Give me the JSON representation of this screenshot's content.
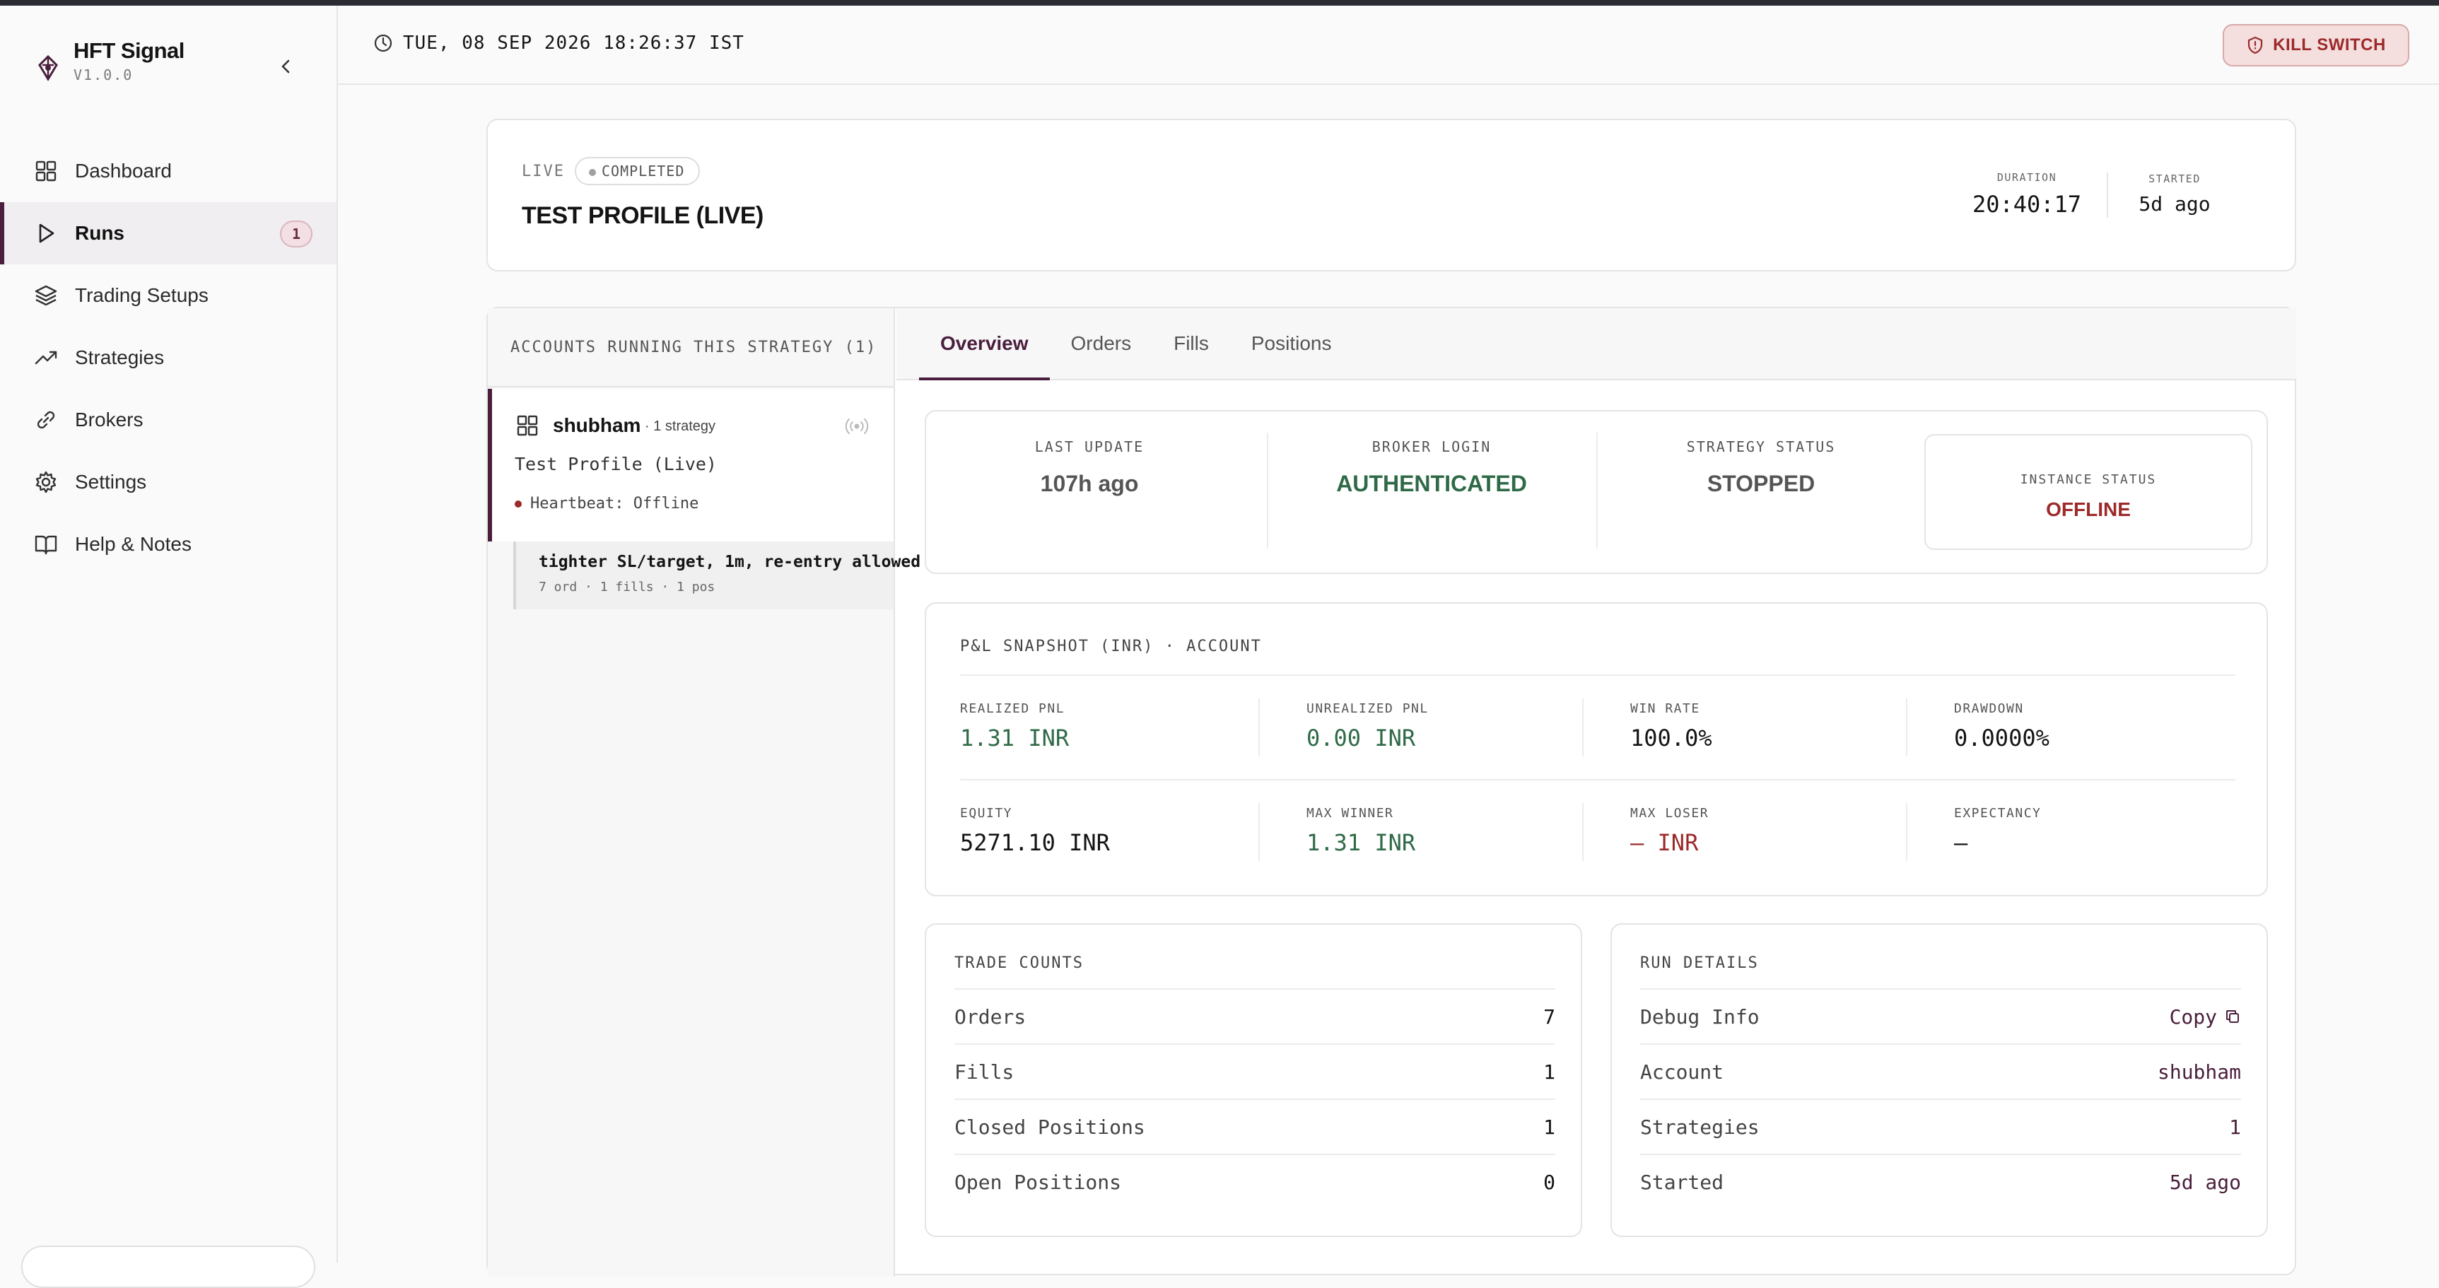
{
  "app": {
    "name": "HFT Signal",
    "version": "V1.0.0"
  },
  "nav": {
    "items": [
      {
        "label": "Dashboard",
        "icon": "grid-icon"
      },
      {
        "label": "Runs",
        "icon": "play-icon",
        "badge": "1",
        "active": true
      },
      {
        "label": "Trading Setups",
        "icon": "layers-icon"
      },
      {
        "label": "Strategies",
        "icon": "trending-up-icon"
      },
      {
        "label": "Brokers",
        "icon": "link-icon"
      },
      {
        "label": "Settings",
        "icon": "gear-icon"
      },
      {
        "label": "Help & Notes",
        "icon": "book-icon"
      }
    ]
  },
  "header": {
    "datetime": "TUE, 08 SEP 2026 18:26:37 IST",
    "kill_switch_label": "KILL SWITCH"
  },
  "run": {
    "mode": "LIVE",
    "status": "COMPLETED",
    "title": "TEST PROFILE (LIVE)",
    "duration_label": "DURATION",
    "duration": "20:40:17",
    "started_label": "STARTED",
    "started": "5d ago"
  },
  "accounts": {
    "title": "ACCOUNTS RUNNING THIS STRATEGY (1)",
    "items": [
      {
        "name": "shubham",
        "sub": "· 1 strategy",
        "profile": "Test Profile (Live)",
        "heartbeat": "Heartbeat: Offline",
        "strategy": {
          "title": "tighter SL/target, 1m, re-entry allowed",
          "meta": "7 ord · 1 fills · 1 pos"
        }
      }
    ]
  },
  "tabs": [
    "Overview",
    "Orders",
    "Fills",
    "Positions"
  ],
  "status": {
    "last_update_label": "LAST UPDATE",
    "last_update": "107h ago",
    "broker_login_label": "BROKER LOGIN",
    "broker_login": "AUTHENTICATED",
    "strategy_status_label": "STRATEGY STATUS",
    "strategy_status": "STOPPED",
    "instance_status_label": "INSTANCE STATUS",
    "instance_status": "OFFLINE"
  },
  "pnl": {
    "title": "P&L SNAPSHOT (INR) · ACCOUNT",
    "realized_label": "REALIZED PNL",
    "realized": "1.31 INR",
    "unrealized_label": "UNREALIZED PNL",
    "unrealized": "0.00 INR",
    "win_rate_label": "WIN RATE",
    "win_rate": "100.0%",
    "drawdown_label": "DRAWDOWN",
    "drawdown": "0.0000%",
    "equity_label": "EQUITY",
    "equity": "5271.10 INR",
    "max_winner_label": "MAX WINNER",
    "max_winner": "1.31 INR",
    "max_loser_label": "MAX LOSER",
    "max_loser": "— INR",
    "expectancy_label": "EXPECTANCY",
    "expectancy": "—"
  },
  "trade_counts": {
    "title": "TRADE COUNTS",
    "rows": [
      {
        "label": "Orders",
        "value": "7"
      },
      {
        "label": "Fills",
        "value": "1"
      },
      {
        "label": "Closed Positions",
        "value": "1"
      },
      {
        "label": "Open Positions",
        "value": "0"
      }
    ]
  },
  "run_details": {
    "title": "RUN DETAILS",
    "debug_label": "Debug Info",
    "copy_label": "Copy",
    "rows": [
      {
        "label": "Account",
        "value": "shubham"
      },
      {
        "label": "Strategies",
        "value": "1"
      },
      {
        "label": "Started",
        "value": "5d ago"
      }
    ]
  },
  "colors": {
    "accent": "#4a1e3c",
    "positive": "#2f6a47",
    "negative": "#9d2a2a",
    "kill_switch_bg": "#f4dede"
  }
}
